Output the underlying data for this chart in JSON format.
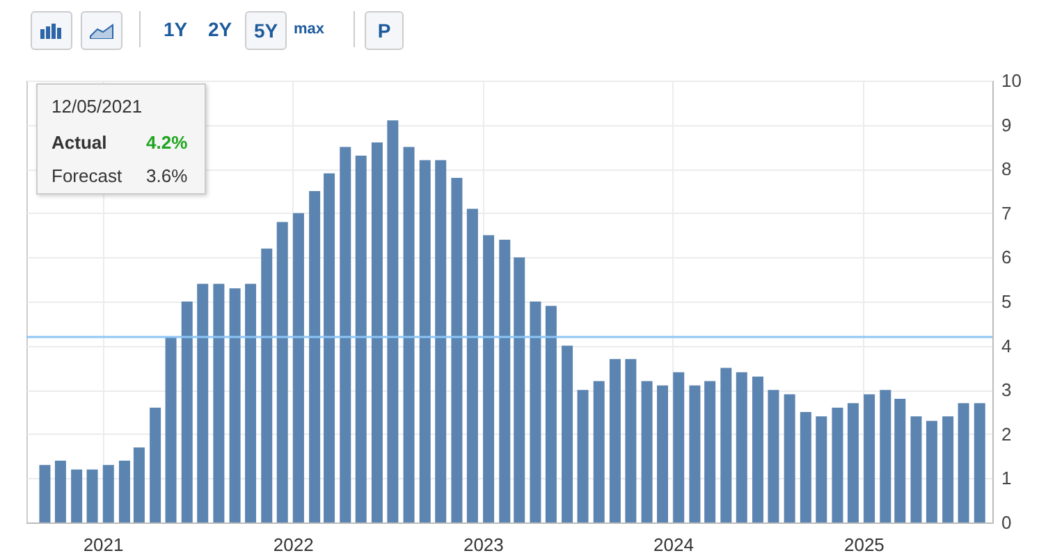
{
  "chart_data": {
    "type": "bar",
    "x": [
      "2020-09-12",
      "2020-10-12",
      "2020-11-12",
      "2020-12-12",
      "2021-01-12",
      "2021-02-12",
      "2021-03-12",
      "2021-04-12",
      "2021-05-12",
      "2021-06-12",
      "2021-07-12",
      "2021-08-12",
      "2021-09-12",
      "2021-10-12",
      "2021-11-12",
      "2021-12-12",
      "2022-01-12",
      "2022-02-12",
      "2022-03-12",
      "2022-04-12",
      "2022-05-12",
      "2022-06-12",
      "2022-07-12",
      "2022-08-12",
      "2022-09-12",
      "2022-10-12",
      "2022-11-12",
      "2022-12-12",
      "2023-01-12",
      "2023-02-12",
      "2023-03-12",
      "2023-04-12",
      "2023-05-12",
      "2023-06-12",
      "2023-07-12",
      "2023-08-12",
      "2023-09-12",
      "2023-10-12",
      "2023-11-12",
      "2023-12-12",
      "2024-01-12",
      "2024-02-12",
      "2024-03-12",
      "2024-04-12",
      "2024-05-12",
      "2024-06-12",
      "2024-07-12",
      "2024-08-12",
      "2024-09-12",
      "2024-10-12",
      "2024-11-12",
      "2024-12-12",
      "2025-01-12",
      "2025-02-12",
      "2025-03-12",
      "2025-04-12",
      "2025-05-12",
      "2025-06-12",
      "2025-07-12",
      "2025-08-12"
    ],
    "values": [
      1.3,
      1.4,
      1.2,
      1.2,
      1.3,
      1.4,
      1.7,
      2.6,
      4.2,
      5.0,
      5.4,
      5.4,
      5.3,
      5.4,
      6.2,
      6.8,
      7.0,
      7.5,
      7.9,
      8.5,
      8.3,
      8.6,
      9.1,
      8.5,
      8.2,
      8.2,
      7.8,
      7.1,
      6.5,
      6.4,
      6.0,
      5.0,
      4.9,
      4.0,
      3.0,
      3.2,
      3.7,
      3.7,
      3.2,
      3.1,
      3.4,
      3.1,
      3.2,
      3.5,
      3.4,
      3.3,
      3.0,
      2.9,
      2.5,
      2.4,
      2.6,
      2.7,
      2.9,
      3.0,
      2.8,
      2.4,
      2.3,
      2.4,
      2.7,
      2.7
    ],
    "color": "#5b84b0",
    "xlim": [
      "2020-08-21",
      "2025-08-23"
    ],
    "xticks": [
      "2021",
      "2022",
      "2023",
      "2024",
      "2025"
    ],
    "ylim": [
      0,
      10
    ],
    "yticks": [
      0,
      1,
      2,
      3,
      4,
      5,
      6,
      7,
      8,
      9,
      10
    ],
    "grid": true,
    "ref_lines": [
      {
        "axis": "y",
        "value": 4.2,
        "color": "#8ec5f5"
      }
    ],
    "annotations": [
      "1Y",
      "2Y",
      "5Y",
      "max",
      "P",
      "12/05/2021",
      "Actual",
      "4.2%",
      "Forecast",
      "3.6%"
    ]
  }
}
